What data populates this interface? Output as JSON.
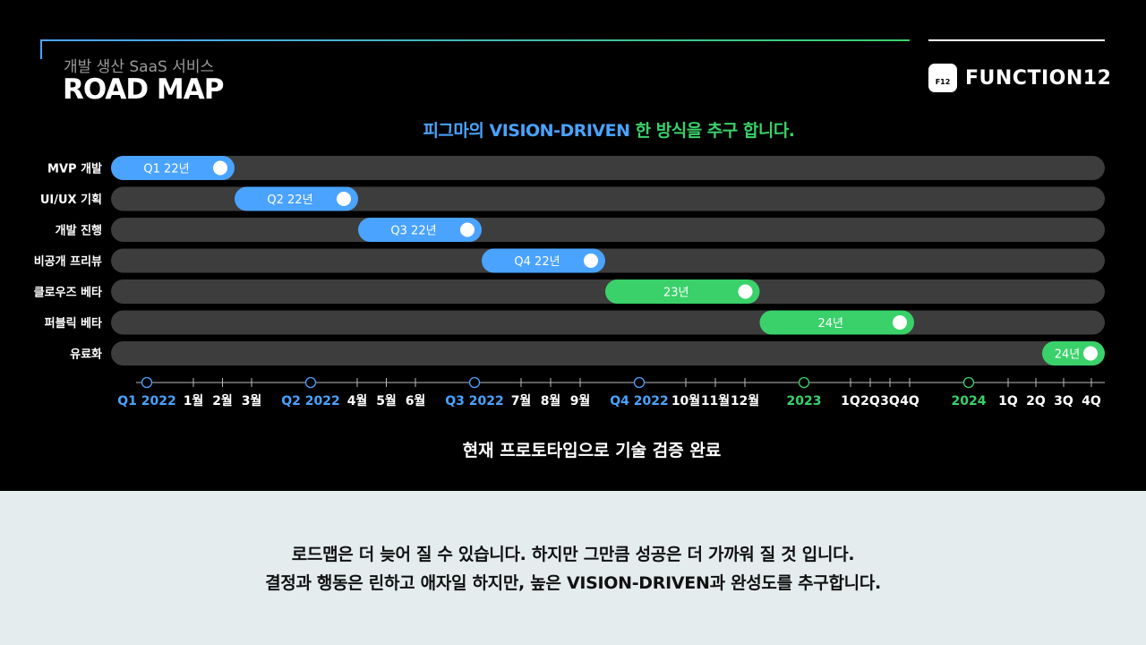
{
  "header": {
    "subtitle": "개발 생산 SaaS 서비스",
    "title": "ROAD MAP",
    "logo_mark": "F12",
    "logo_text": "FUNCTION12"
  },
  "tagline": {
    "blue": "피그마의 VISION-DRIVEN",
    "green": "한 방식을 추구 합니다."
  },
  "colors": {
    "blue": "#4aa3ff",
    "green": "#3ad16a",
    "track": "#3d3d3d"
  },
  "chart_data": {
    "type": "timeline",
    "axis_ticks": [
      {
        "label": "Q1 2022",
        "major": true,
        "color": "blue"
      },
      {
        "label": "1월"
      },
      {
        "label": "2월"
      },
      {
        "label": "3월"
      },
      {
        "label": "Q2 2022",
        "major": true,
        "color": "blue"
      },
      {
        "label": "4월"
      },
      {
        "label": "5월"
      },
      {
        "label": "6월"
      },
      {
        "label": "Q3 2022",
        "major": true,
        "color": "blue"
      },
      {
        "label": "7월"
      },
      {
        "label": "8월"
      },
      {
        "label": "9월"
      },
      {
        "label": "Q4 2022",
        "major": true,
        "color": "blue"
      },
      {
        "label": "10월"
      },
      {
        "label": "11월"
      },
      {
        "label": "12월"
      },
      {
        "label": "2023",
        "major": true,
        "color": "green"
      },
      {
        "label": "1Q"
      },
      {
        "label": "2Q"
      },
      {
        "label": "3Q"
      },
      {
        "label": "4Q"
      },
      {
        "label": "2024",
        "major": true,
        "color": "green"
      },
      {
        "label": "1Q"
      },
      {
        "label": "2Q"
      },
      {
        "label": "3Q"
      },
      {
        "label": "4Q"
      }
    ],
    "tasks": [
      {
        "name": "MVP 개발",
        "label": "Q1 22년",
        "start": 0,
        "end": 4,
        "color": "blue"
      },
      {
        "name": "UI/UX 기획",
        "label": "Q2 22년",
        "start": 4,
        "end": 8,
        "color": "blue"
      },
      {
        "name": "개발 진행",
        "label": "Q3 22년",
        "start": 8,
        "end": 12,
        "color": "blue"
      },
      {
        "name": "비공개 프리뷰",
        "label": "Q4 22년",
        "start": 12,
        "end": 16,
        "color": "blue"
      },
      {
        "name": "클로우즈 베타",
        "label": "23년",
        "start": 16,
        "end": 21,
        "color": "green"
      },
      {
        "name": "퍼블릭 베타",
        "label": "24년",
        "start": 21,
        "end": 26,
        "color": "green"
      },
      {
        "name": "유료화",
        "label": "24년",
        "start": 26,
        "end": 28,
        "color": "green"
      }
    ]
  },
  "footnote": "현재 프로토타입으로 기술 검증 완료",
  "message": {
    "line1": "로드맵은 더 늦어 질 수 있습니다. 하지만 그만큼 성공은 더 가까워 질 것 입니다.",
    "line2": "결정과 행동은 린하고 애자일 하지만, 높은 VISION-DRIVEN과  완성도를 추구합니다."
  }
}
